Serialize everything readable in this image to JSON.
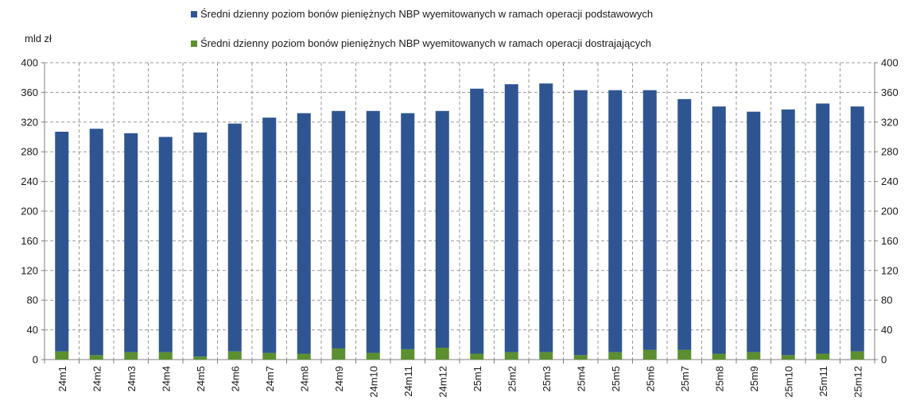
{
  "chart_data": {
    "type": "bar",
    "stacked": true,
    "unit_label": "mld zł",
    "categories": [
      "24m1",
      "24m2",
      "24m3",
      "24m4",
      "24m5",
      "24m6",
      "24m7",
      "24m8",
      "24m9",
      "24m10",
      "24m11",
      "24m12",
      "25m1",
      "25m2",
      "25m3",
      "25m4",
      "25m5",
      "25m6",
      "25m7",
      "25m8",
      "25m9",
      "25m10",
      "25m11",
      "25m12"
    ],
    "series": [
      {
        "name": "Średni dzienny poziom bonów pieniężnych NBP wyemitowanych w ramach operacji dostrajających",
        "color": "#5b8f2f",
        "values": [
          11,
          6,
          10,
          10,
          4,
          11,
          9,
          8,
          15,
          9,
          14,
          16,
          8,
          10,
          10,
          6,
          10,
          13,
          13,
          8,
          10,
          6,
          8,
          11
        ]
      },
      {
        "name": "Średni dzienny poziom bonów pieniężnych NBP wyemitowanych w ramach operacji podstawowych",
        "color": "#2e5591",
        "values": [
          296,
          305,
          295,
          290,
          302,
          307,
          317,
          324,
          320,
          326,
          318,
          319,
          357,
          361,
          362,
          357,
          353,
          350,
          338,
          333,
          324,
          331,
          337,
          330
        ]
      }
    ],
    "ylim": [
      0,
      400
    ],
    "yticks": [
      0,
      40,
      80,
      120,
      160,
      200,
      240,
      280,
      320,
      360,
      400
    ],
    "grid": true,
    "legend_position": "top"
  }
}
